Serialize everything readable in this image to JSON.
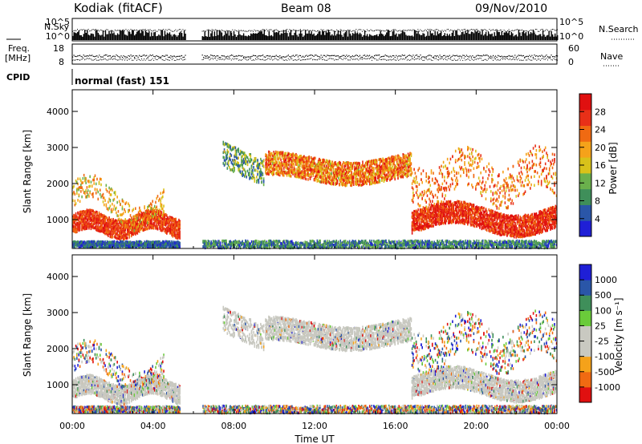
{
  "header": {
    "station": "Kodiak (fitACF)",
    "beam": "Beam 08",
    "date": "09/Nov/2010"
  },
  "panel_labels": {
    "nsky": "N.Sky",
    "nsearch": "N.Search",
    "freq": "Freq.",
    "freq_unit": "[MHz]",
    "nave": "Nave",
    "cpid": "CPID",
    "cpid_value": "normal (fast) 151"
  },
  "colors": {
    "power_scale": [
      "#1f1fd6",
      "#2a56a8",
      "#3f8f5a",
      "#6ab04c",
      "#d8c21a",
      "#f5a21a",
      "#f06a12",
      "#e83018",
      "#e01010"
    ],
    "velocity_scale": [
      "#e01010",
      "#f06a12",
      "#f5a21a",
      "#c9c9c1",
      "#c9c9c1",
      "#6acb3a",
      "#3f8f5a",
      "#2a56a8",
      "#1f1fd6"
    ],
    "ground_scatter": "#c9c9c1"
  },
  "chart_data": [
    {
      "type": "line",
      "name": "N.Sky / N.Search",
      "y_ticks_left": [
        "10^5",
        "10^0"
      ],
      "y_ticks_right": [
        "10^5",
        "10^0"
      ],
      "legend": [
        "N.Sky",
        "N.Search"
      ]
    },
    {
      "type": "scatter",
      "name": "Freq / Nave",
      "y_ticks_left": [
        "18",
        "8"
      ],
      "y_ticks_right": [
        "60",
        "0"
      ],
      "ylim_left": [
        8,
        18
      ],
      "ylim_right": [
        0,
        60
      ],
      "legend": [
        "Nave"
      ]
    },
    {
      "type": "heatmap",
      "name": "power",
      "ylabel": "Slant Range [km]",
      "ylim": [
        200,
        4600
      ],
      "y_ticks": [
        1000,
        2000,
        3000,
        4000
      ],
      "colorbar_label": "Power [dB]",
      "colorbar_ticks": [
        "4",
        "8",
        "12",
        "16",
        "20",
        "24",
        "28"
      ],
      "clim": [
        0,
        32
      ]
    },
    {
      "type": "heatmap",
      "name": "velocity",
      "ylabel": "Slant Range [km]",
      "ylim": [
        200,
        4600
      ],
      "y_ticks": [
        1000,
        2000,
        3000,
        4000
      ],
      "colorbar_label": "Velocity [m s⁻¹]",
      "colorbar_ticks": [
        "1000",
        "500",
        "100",
        "25",
        "-25",
        "-100",
        "-500",
        "-1000"
      ]
    }
  ],
  "xaxis": {
    "label": "Time UT",
    "ticks": [
      "00:00",
      "04:00",
      "08:00",
      "12:00",
      "16:00",
      "20:00",
      "00:00"
    ],
    "xlim_hours": [
      0,
      24
    ],
    "data_gap_hours": [
      5.6,
      6.4
    ]
  }
}
